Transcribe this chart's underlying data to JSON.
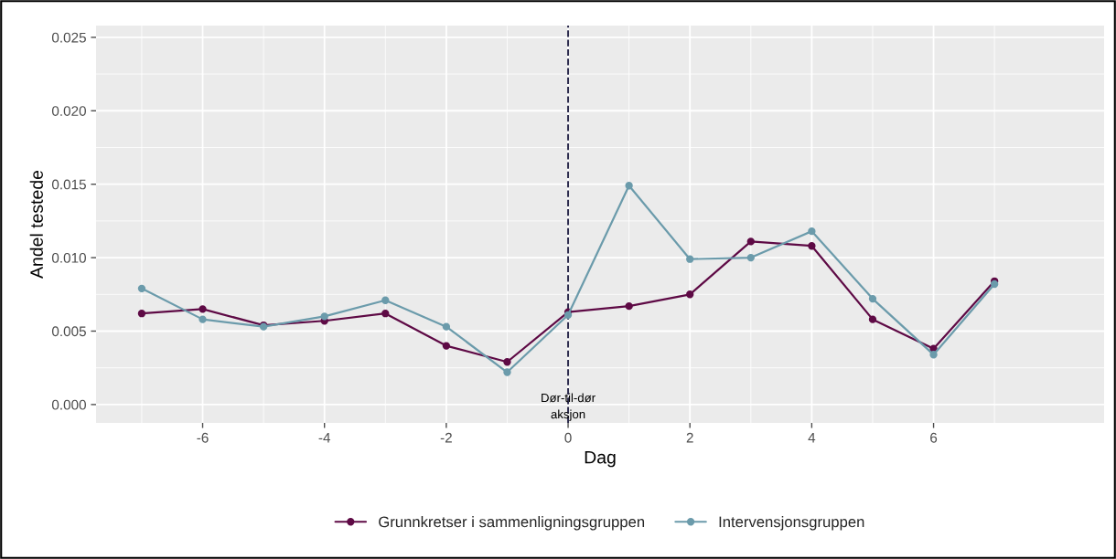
{
  "chart_data": {
    "type": "line",
    "xlabel": "Dag",
    "ylabel": "Andel testede",
    "x": [
      -7,
      -6,
      -5,
      -4,
      -3,
      -2,
      -1,
      0,
      1,
      2,
      3,
      4,
      5,
      6,
      7
    ],
    "series": [
      {
        "name": "Grunnkretser i sammenligningsgruppen",
        "color": "#5e0a45",
        "values": [
          0.0062,
          0.0065,
          0.0054,
          0.0057,
          0.0062,
          0.004,
          0.0029,
          0.0063,
          0.0067,
          0.0075,
          0.0111,
          0.0108,
          0.0058,
          0.0038,
          0.0084
        ]
      },
      {
        "name": "Intervensjonsgruppen",
        "color": "#6b9bab",
        "values": [
          0.0079,
          0.0058,
          0.0053,
          0.006,
          0.0071,
          0.0053,
          0.0022,
          0.0061,
          0.0149,
          0.0099,
          0.01,
          0.0118,
          0.0072,
          0.0034,
          0.0082
        ]
      }
    ],
    "xlim": [
      -7.75,
      8.8
    ],
    "xticks": [
      -6,
      -4,
      -2,
      0,
      2,
      4,
      6
    ],
    "ylim": [
      -0.00125,
      0.0258
    ],
    "yticks": [
      {
        "value": 0,
        "label": "0.000"
      },
      {
        "value": 0.005,
        "label": "0.005"
      },
      {
        "value": 0.01,
        "label": "0.010"
      },
      {
        "value": 0.015,
        "label": "0.015"
      },
      {
        "value": 0.02,
        "label": "0.020"
      },
      {
        "value": 0.025,
        "label": "0.025"
      }
    ],
    "ref_lines": [
      {
        "axis": "x",
        "value": 0,
        "label": "Dør-til-dør\naksjon",
        "color": "#2b2a4c",
        "line_style": "dashed"
      }
    ],
    "grid": true,
    "legend": "bottom",
    "marker": "circle",
    "line_style": "solid"
  }
}
